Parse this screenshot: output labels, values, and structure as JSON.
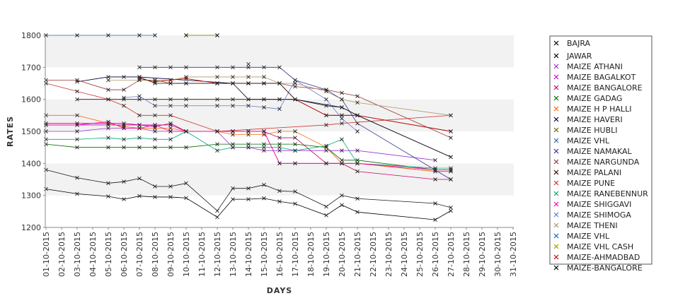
{
  "chart_data": {
    "type": "line",
    "xlabel": "DAYS",
    "ylabel": "RATES",
    "ylim": [
      1200,
      1800
    ],
    "yticks": [
      1200,
      1300,
      1400,
      1500,
      1600,
      1700,
      1800
    ],
    "legend_position": "right",
    "grid": "alternating horizontal bands",
    "x": [
      "01-10-2015",
      "02-10-2015",
      "03-10-2015",
      "04-10-2015",
      "05-10-2015",
      "06-10-2015",
      "07-10-2015",
      "08-10-2015",
      "09-10-2015",
      "10-10-2015",
      "11-10-2015",
      "12-10-2015",
      "13-10-2015",
      "14-10-2015",
      "15-10-2015",
      "16-10-2015",
      "17-10-2015",
      "18-10-2015",
      "19-10-2015",
      "20-10-2015",
      "21-10-2015",
      "22-10-2015",
      "23-10-2015",
      "24-10-2015",
      "25-10-2015",
      "26-10-2015",
      "27-10-2015",
      "28-10-2015",
      "29-10-2015",
      "30-10-2015",
      "31-10-2015"
    ],
    "series": [
      {
        "name": "BAJRA",
        "color": "#000000",
        "values": [
          1320,
          null,
          1305,
          null,
          1297,
          1288,
          1298,
          1295,
          1295,
          1292,
          null,
          1232,
          1288,
          1288,
          1291,
          1281,
          1274,
          null,
          1238,
          1270,
          1248,
          null,
          null,
          null,
          null,
          1224,
          1252,
          null,
          null,
          null,
          null
        ]
      },
      {
        "name": "JAWAR",
        "color": "#1a1a1a",
        "values": [
          1380,
          null,
          1355,
          null,
          1338,
          1343,
          1353,
          1328,
          1328,
          1338,
          null,
          1252,
          1322,
          1322,
          1333,
          1314,
          1312,
          null,
          1265,
          1300,
          1290,
          null,
          null,
          null,
          null,
          1275,
          1262,
          null,
          null,
          null,
          null
        ]
      },
      {
        "name": "MAIZE ATHANI",
        "color": "#9933cc",
        "values": [
          1500,
          null,
          1500,
          null,
          1510,
          1510,
          1510,
          1500,
          1500,
          1500,
          null,
          1500,
          1450,
          1450,
          1440,
          1440,
          1440,
          null,
          1440,
          1440,
          1440,
          null,
          null,
          null,
          null,
          1410,
          null,
          null,
          null,
          null,
          null
        ]
      },
      {
        "name": "MAIZE BAGALKOT",
        "color": "#cc00cc",
        "values": [
          1520,
          null,
          1520,
          null,
          1520,
          1520,
          1520,
          1520,
          1520,
          1500,
          null,
          1500,
          1500,
          1500,
          1500,
          1400,
          1400,
          null,
          1400,
          1400,
          1400,
          null,
          null,
          null,
          null,
          1375,
          1375,
          null,
          null,
          null,
          null
        ]
      },
      {
        "name": "MAIZE BANGALORE",
        "color": "#cc0066",
        "values": [
          1525,
          null,
          1525,
          null,
          1525,
          1525,
          1520,
          1515,
          1525,
          1500,
          null,
          1500,
          1500,
          1500,
          1500,
          1480,
          1480,
          null,
          1400,
          1400,
          1375,
          null,
          null,
          null,
          null,
          1350,
          1350,
          null,
          null,
          null,
          null
        ]
      },
      {
        "name": "MAIZE GADAG",
        "color": "#006600",
        "values": [
          1460,
          null,
          1450,
          null,
          1450,
          1450,
          1450,
          1450,
          1450,
          1450,
          null,
          1460,
          1460,
          1460,
          1460,
          1460,
          1460,
          null,
          1450,
          1410,
          1410,
          null,
          null,
          null,
          null,
          1380,
          1380,
          null,
          null,
          null,
          null
        ]
      },
      {
        "name": "MAIZE H P HALLI",
        "color": "#ff6600",
        "values": [
          1550,
          null,
          1550,
          null,
          1525,
          1515,
          1510,
          1510,
          1510,
          1500,
          null,
          1500,
          1490,
          1490,
          1490,
          1500,
          1500,
          null,
          1450,
          1400,
          1400,
          null,
          null,
          null,
          null,
          1375,
          1375,
          null,
          null,
          null,
          null
        ]
      },
      {
        "name": "MAIZE HAVERI",
        "color": "#000033",
        "values": [
          null,
          null,
          1655,
          null,
          1670,
          1670,
          1670,
          null,
          null,
          null,
          null,
          null,
          1650,
          1600,
          1600,
          1600,
          1600,
          null,
          null,
          1575,
          1550,
          null,
          null,
          null,
          null,
          null,
          1420,
          null,
          null,
          null,
          null
        ]
      },
      {
        "name": "MAIZE HUBLI",
        "color": "#666600",
        "values": [
          null,
          null,
          null,
          null,
          null,
          null,
          null,
          null,
          null,
          1800,
          null,
          1800,
          null,
          null,
          null,
          null,
          null,
          null,
          null,
          null,
          null,
          null,
          null,
          null,
          null,
          null,
          null,
          null,
          null,
          null,
          null
        ]
      },
      {
        "name": "MAIZE VHL",
        "color": "#336699",
        "values": [
          1800,
          null,
          1800,
          null,
          1800,
          null,
          1800,
          1800,
          null,
          null,
          null,
          null,
          null,
          null,
          null,
          null,
          null,
          null,
          null,
          null,
          null,
          null,
          null,
          null,
          null,
          null,
          null,
          null,
          null,
          null,
          null
        ]
      },
      {
        "name": "MAIZE NAMAKAL",
        "color": "#333399",
        "values": [
          null,
          null,
          null,
          null,
          null,
          null,
          1700,
          1700,
          1700,
          1700,
          null,
          1700,
          1700,
          1700,
          1700,
          1700,
          1660,
          null,
          1630,
          1600,
          1525,
          null,
          null,
          null,
          null,
          null,
          1350,
          null,
          null,
          null,
          null
        ]
      },
      {
        "name": "MAIZE NARGUNDA",
        "color": "#993333",
        "values": [
          1660,
          null,
          1660,
          null,
          1630,
          1630,
          1660,
          1660,
          1650,
          1650,
          null,
          1650,
          1650,
          1650,
          1650,
          1650,
          1640,
          null,
          1630,
          1620,
          1610,
          null,
          null,
          null,
          null,
          null,
          1480,
          null,
          null,
          null,
          null
        ]
      },
      {
        "name": "MAIZE PALANI",
        "color": "#330000",
        "values": [
          null,
          null,
          1600,
          null,
          1600,
          1600,
          1600,
          1600,
          1600,
          1600,
          null,
          1600,
          1600,
          1600,
          1600,
          1600,
          1600,
          null,
          1550,
          1550,
          1550,
          null,
          null,
          null,
          null,
          null,
          1500,
          null,
          null,
          null,
          null
        ]
      },
      {
        "name": "MAIZE PUNE",
        "color": "#cc3333",
        "values": [
          1650,
          null,
          1625,
          null,
          1600,
          1580,
          1550,
          1550,
          1550,
          null,
          null,
          1500,
          null,
          null,
          null,
          null,
          null,
          null,
          1520,
          1525,
          null,
          null,
          null,
          null,
          null,
          null,
          1550,
          null,
          null,
          null,
          null
        ]
      },
      {
        "name": "MAIZE RANEBENNUR",
        "color": "#00aa77",
        "values": [
          1475,
          null,
          1475,
          null,
          1480,
          1475,
          1480,
          1475,
          1475,
          1500,
          null,
          1440,
          1450,
          1450,
          1450,
          1450,
          1440,
          null,
          1455,
          1475,
          1400,
          null,
          null,
          null,
          null,
          1385,
          1385,
          null,
          null,
          null,
          null
        ]
      },
      {
        "name": "MAIZE SHIGGAVI",
        "color": "#ff00aa",
        "values": [
          1520,
          null,
          1520,
          null,
          1530,
          1510,
          1510,
          1520,
          1500,
          1500,
          null,
          1500,
          1500,
          1500,
          1500,
          1400,
          1400,
          null,
          1400,
          1400,
          1400,
          null,
          null,
          null,
          null,
          1380,
          1380,
          null,
          null,
          null,
          null
        ]
      },
      {
        "name": "MAIZE SHIMOGA",
        "color": "#6677cc",
        "values": [
          null,
          null,
          null,
          null,
          null,
          1605,
          1610,
          1580,
          1580,
          1580,
          null,
          1580,
          1580,
          1580,
          1575,
          1570,
          1660,
          null,
          1600,
          1540,
          1500,
          null,
          null,
          null,
          null,
          null,
          null,
          null,
          null,
          null,
          null
        ]
      },
      {
        "name": "MAIZE THENI",
        "color": "#aa9966",
        "values": [
          null,
          null,
          null,
          null,
          1660,
          null,
          1660,
          1660,
          1660,
          1670,
          null,
          1670,
          1670,
          1670,
          1670,
          1650,
          1650,
          null,
          1625,
          1600,
          1590,
          null,
          null,
          null,
          null,
          null,
          1550,
          null,
          null,
          null,
          null
        ]
      },
      {
        "name": "MAIZE VHL",
        "color": "#0066cc",
        "values": [
          null,
          null,
          null,
          null,
          null,
          null,
          null,
          null,
          null,
          null,
          null,
          null,
          null,
          1710,
          null,
          null,
          null,
          null,
          null,
          null,
          null,
          null,
          null,
          null,
          null,
          null,
          null,
          null,
          null,
          null,
          null
        ]
      },
      {
        "name": "MAIZE VHL CASH",
        "color": "#999900",
        "values": [
          null,
          null,
          null,
          null,
          null,
          null,
          null,
          null,
          null,
          1800,
          null,
          1800,
          null,
          null,
          null,
          null,
          null,
          null,
          null,
          null,
          null,
          null,
          null,
          null,
          null,
          null,
          null,
          null,
          null,
          null,
          null
        ]
      },
      {
        "name": "MAIZE-AHMADBAD",
        "color": "#cc0000",
        "values": [
          null,
          null,
          null,
          null,
          null,
          null,
          1665,
          1655,
          1660,
          1665,
          null,
          1650,
          1650,
          1650,
          1650,
          1650,
          1600,
          null,
          1550,
          1550,
          1550,
          null,
          null,
          null,
          null,
          null,
          1500,
          null,
          null,
          null,
          null
        ]
      },
      {
        "name": "MAIZE-BANGALORE",
        "color": "#111111",
        "values": [
          null,
          null,
          null,
          null,
          null,
          null,
          1670,
          1650,
          1650,
          1650,
          null,
          1650,
          1650,
          1650,
          1650,
          1650,
          1600,
          null,
          1580,
          1575,
          1550,
          null,
          null,
          null,
          null,
          null,
          1420,
          null,
          null,
          null,
          null
        ]
      }
    ]
  }
}
